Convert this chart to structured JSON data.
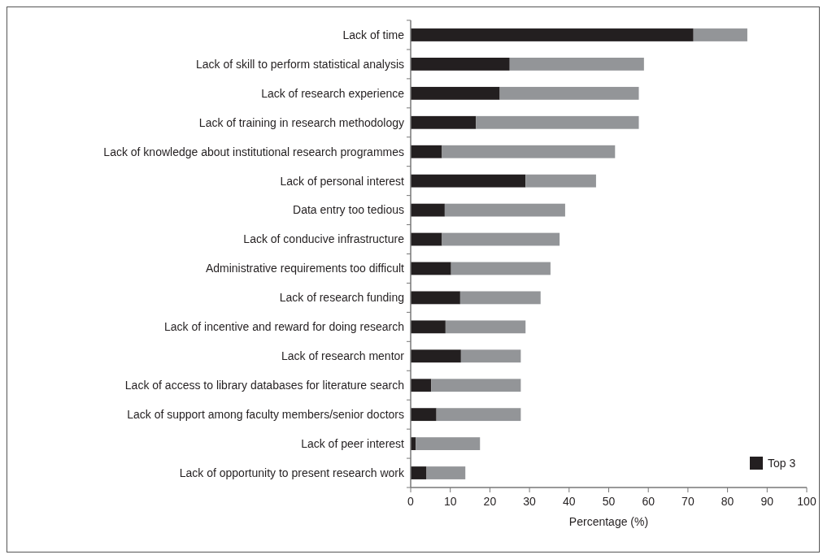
{
  "chart_data": {
    "type": "bar",
    "orientation": "horizontal",
    "stacked": true,
    "xlabel": "Percentage (%)",
    "categories": [
      "Lack of time",
      "Lack of skill to perform statistical analysis",
      "Lack of research experience",
      "Lack of training in research methodology",
      "Lack of knowledge about institutional research programmes",
      "Lack of personal interest",
      "Data entry too tedious",
      "Lack of conducive infrastructure",
      "Administrative requirements too difficult",
      "Lack of research funding",
      "Lack of incentive and reward for doing research",
      "Lack of research mentor",
      "Lack of access to library databases for literature search",
      "Lack of support among faculty members/senior doctors",
      "Lack of peer interest",
      "Lack of opportunity to present research work"
    ],
    "series": [
      {
        "name": "Top 3",
        "color": "#231f20",
        "values": [
          71.4,
          25.0,
          22.5,
          16.5,
          7.9,
          29.0,
          8.6,
          7.9,
          10.2,
          12.5,
          8.8,
          12.7,
          5.2,
          6.5,
          1.3,
          4.0
        ]
      },
      {
        "color": "#939598",
        "values": [
          13.6,
          33.9,
          35.1,
          41.1,
          43.7,
          17.8,
          30.4,
          29.7,
          25.1,
          20.3,
          20.2,
          15.1,
          22.6,
          21.3,
          16.2,
          9.8
        ]
      }
    ],
    "xlim": [
      0,
      100
    ],
    "xticks": [
      0,
      10,
      20,
      30,
      40,
      50,
      60,
      70,
      80,
      90,
      100
    ],
    "legend": "bottom right",
    "grid": false
  }
}
